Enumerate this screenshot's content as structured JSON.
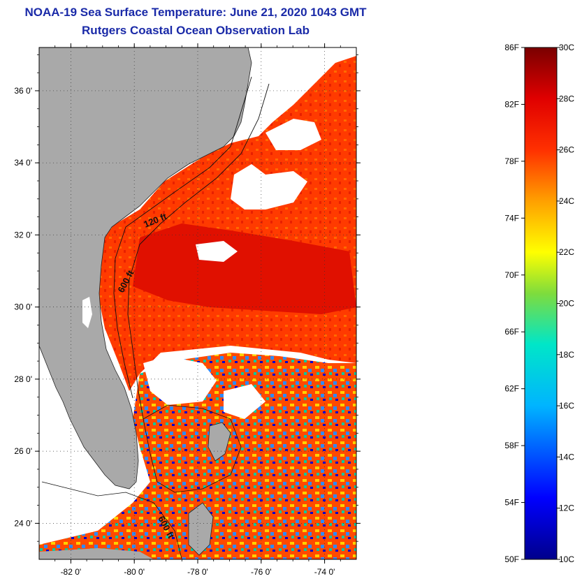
{
  "header": {
    "title": "NOAA-19 Sea Surface Temperature:  June 21, 2020 1043 GMT",
    "subtitle": "Rutgers Coastal Ocean Observation Lab"
  },
  "map": {
    "lon_range": [
      -83,
      -73
    ],
    "lat_range": [
      23,
      37.2
    ],
    "lat_ticks": [
      {
        "value": 36,
        "label": "36 0'"
      },
      {
        "value": 34,
        "label": "34 0'"
      },
      {
        "value": 32,
        "label": "32 0'"
      },
      {
        "value": 30,
        "label": "30 0'"
      },
      {
        "value": 28,
        "label": "28 0'"
      },
      {
        "value": 26,
        "label": "26 0'"
      },
      {
        "value": 24,
        "label": "24 0'"
      }
    ],
    "lon_ticks": [
      {
        "value": -82,
        "label": "-82 0'"
      },
      {
        "value": -80,
        "label": "-80 0'"
      },
      {
        "value": -78,
        "label": "-78 0'"
      },
      {
        "value": -76,
        "label": "-76 0'"
      },
      {
        "value": -74,
        "label": "-74 0'"
      }
    ],
    "contour_labels": [
      "120 ft",
      "600 ft",
      "600 ft"
    ],
    "colors": {
      "land": "#a9a9a9",
      "cloud": "#ffffff",
      "warm": "#ff3a00",
      "hot": "#e00000",
      "cool": "#1e90ff",
      "cold": "#0000c8"
    }
  },
  "colorbar": {
    "fahrenheit": [
      "86F",
      "82F",
      "78F",
      "74F",
      "70F",
      "66F",
      "62F",
      "58F",
      "54F",
      "50F"
    ],
    "celsius": [
      "30C",
      "28C",
      "26C",
      "24C",
      "22C",
      "20C",
      "18C",
      "16C",
      "14C",
      "12C",
      "10C"
    ]
  }
}
